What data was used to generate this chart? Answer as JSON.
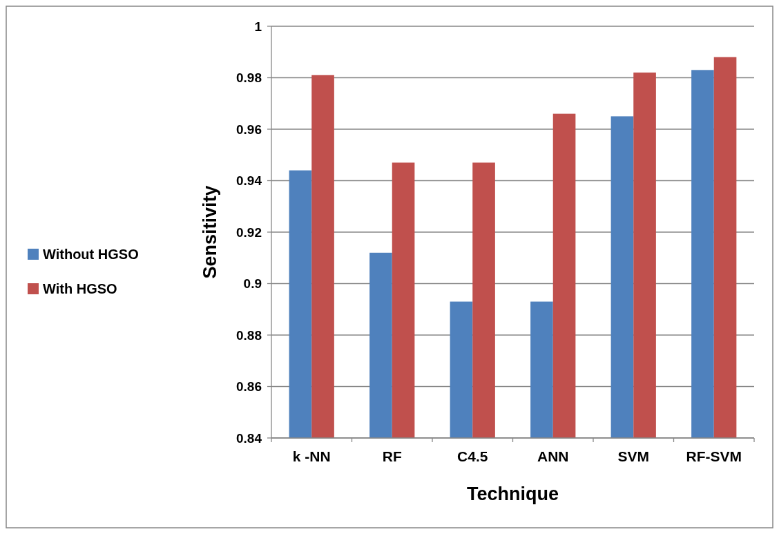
{
  "chart_data": {
    "type": "bar",
    "xlabel": "Technique",
    "ylabel": "Sensitivity",
    "categories": [
      "k -NN",
      "RF",
      "C4.5",
      "ANN",
      "SVM",
      "RF-SVM"
    ],
    "series": [
      {
        "name": "Without HGSO",
        "color": "#4f81bd",
        "values": [
          0.944,
          0.912,
          0.893,
          0.893,
          0.965,
          0.983
        ]
      },
      {
        "name": "With HGSO",
        "color": "#c0504d",
        "values": [
          0.981,
          0.947,
          0.947,
          0.966,
          0.982,
          0.988
        ]
      }
    ],
    "ylim": [
      0.84,
      1
    ],
    "yticks": [
      0.84,
      0.86,
      0.88,
      0.9,
      0.92,
      0.94,
      0.96,
      0.98,
      1
    ],
    "grid": "y",
    "legend": "left"
  }
}
